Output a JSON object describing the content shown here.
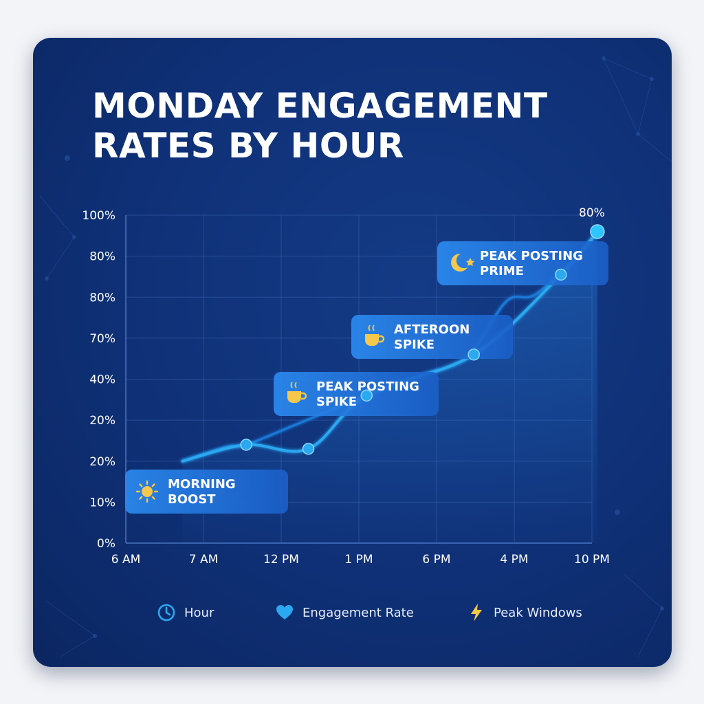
{
  "chart_data": {
    "type": "line",
    "title": "MONDAY ENGAGEMENT RATES BY HOUR",
    "y_tick_labels": [
      "0%",
      "10%",
      "20%",
      "20%",
      "40%",
      "70%",
      "80%",
      "80%",
      "100%"
    ],
    "x_tick_labels": [
      "6 AM",
      "7 AM",
      "12 PM",
      "1 PM",
      "6 PM",
      "4 PM",
      "10 PM"
    ],
    "ylim": [
      0,
      8
    ],
    "xlim": [
      0,
      6
    ],
    "grid": true,
    "series": [
      {
        "values_x": [
          0.73,
          1.55,
          2.35,
          3.1,
          4.48,
          5.6,
          6.07
        ],
        "values_y": [
          2.0,
          2.4,
          2.3,
          3.6,
          4.6,
          6.55,
          7.6
        ],
        "marker_indices": [
          1,
          2,
          3,
          4,
          5,
          6
        ],
        "color": "#2aa8f0"
      },
      {
        "values_x": [
          0.73,
          1.3,
          1.55,
          2.2,
          3.1,
          3.8,
          4.4,
          4.9,
          5.3,
          6.0
        ],
        "values_y": [
          2.0,
          2.35,
          2.4,
          2.9,
          3.6,
          4.1,
          4.55,
          5.9,
          6.1,
          7.4
        ],
        "marker_indices": [],
        "color": "#1f7fe0"
      }
    ],
    "point_label": {
      "text": "80%",
      "series": 0,
      "index": 6
    },
    "annotations": [
      {
        "label_line1": "MORNING",
        "label_line2": "BOOST",
        "icon": "sun-icon"
      },
      {
        "label_line1": "PEAK POSTING",
        "label_line2": "SPIKE",
        "icon": "coffee-icon"
      },
      {
        "label_line1": "AFTEROON",
        "label_line2": "SPIKE",
        "icon": "coffee-icon"
      },
      {
        "label_line1": "PEAK POSTING",
        "label_line2": "PRIME",
        "icon": "moon-star-icon"
      }
    ]
  },
  "legend": [
    {
      "label": "Hour",
      "icon": "clock-icon"
    },
    {
      "label": "Engagement Rate",
      "icon": "heart-icon"
    },
    {
      "label": "Peak Windows",
      "icon": "lightning-icon"
    }
  ],
  "colors": {
    "background": "#0f3076",
    "accent": "#2aa8f0",
    "annotation_fill": "#1f6fd8",
    "icon_yellow": "#f5c84c"
  }
}
